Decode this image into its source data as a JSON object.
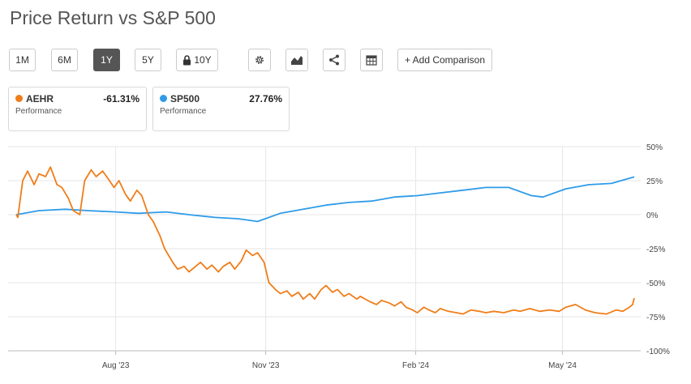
{
  "page": {
    "title": "Price Return vs S&P 500"
  },
  "toolbar": {
    "ranges": [
      "1M",
      "6M",
      "1Y",
      "5Y",
      "10Y"
    ],
    "active_range": "1Y",
    "icons": [
      "gear-icon",
      "chart-type-icon",
      "share-icon",
      "table-icon"
    ],
    "add_comparison_label": "+ Add Comparison"
  },
  "cards": [
    {
      "symbol": "AEHR",
      "value": "-61.31%",
      "sub": "Performance",
      "color": "#f07d1a"
    },
    {
      "symbol": "SP500",
      "value": "27.76%",
      "sub": "Performance",
      "color": "#2f9be8"
    }
  ],
  "chart_data": {
    "type": "line",
    "x_axis_labels": [
      "Aug '23",
      "Nov '23",
      "Feb '24",
      "May '24"
    ],
    "y_axis_labels": [
      "50%",
      "25%",
      "0%",
      "-25%",
      "-50%",
      "-75%",
      "-100%"
    ],
    "ylim": [
      -100,
      50
    ],
    "grid": true,
    "series": [
      {
        "name": "AEHR",
        "color": "#f07d1a",
        "x": [
          "2023-06-01",
          "2023-06-02",
          "2023-06-05",
          "2023-06-08",
          "2023-06-12",
          "2023-06-15",
          "2023-06-19",
          "2023-06-22",
          "2023-06-26",
          "2023-06-29",
          "2023-07-03",
          "2023-07-06",
          "2023-07-10",
          "2023-07-13",
          "2023-07-17",
          "2023-07-20",
          "2023-07-24",
          "2023-07-27",
          "2023-07-31",
          "2023-08-03",
          "2023-08-07",
          "2023-08-10",
          "2023-08-14",
          "2023-08-17",
          "2023-08-21",
          "2023-08-24",
          "2023-08-28",
          "2023-08-31",
          "2023-09-05",
          "2023-09-08",
          "2023-09-12",
          "2023-09-15",
          "2023-09-19",
          "2023-09-22",
          "2023-09-26",
          "2023-09-29",
          "2023-10-03",
          "2023-10-06",
          "2023-10-10",
          "2023-10-13",
          "2023-10-17",
          "2023-10-20",
          "2023-10-24",
          "2023-10-27",
          "2023-10-31",
          "2023-11-03",
          "2023-11-07",
          "2023-11-10",
          "2023-11-14",
          "2023-11-17",
          "2023-11-21",
          "2023-11-24",
          "2023-11-28",
          "2023-12-01",
          "2023-12-05",
          "2023-12-08",
          "2023-12-12",
          "2023-12-15",
          "2023-12-19",
          "2023-12-22",
          "2023-12-27",
          "2023-12-29",
          "2024-01-04",
          "2024-01-08",
          "2024-01-11",
          "2024-01-16",
          "2024-01-19",
          "2024-01-23",
          "2024-01-26",
          "2024-01-30",
          "2024-02-02",
          "2024-02-06",
          "2024-02-09",
          "2024-02-13",
          "2024-02-16",
          "2024-02-21",
          "2024-02-26",
          "2024-03-01",
          "2024-03-06",
          "2024-03-11",
          "2024-03-15",
          "2024-03-20",
          "2024-03-26",
          "2024-04-01",
          "2024-04-05",
          "2024-04-11",
          "2024-04-17",
          "2024-04-23",
          "2024-04-29",
          "2024-05-03",
          "2024-05-09",
          "2024-05-15",
          "2024-05-21",
          "2024-05-28",
          "2024-06-03",
          "2024-06-07",
          "2024-06-11",
          "2024-06-13",
          "2024-06-14"
        ],
        "values": [
          0,
          -2,
          25,
          32,
          22,
          30,
          28,
          35,
          22,
          20,
          12,
          3,
          0,
          25,
          33,
          28,
          32,
          27,
          20,
          25,
          15,
          10,
          18,
          14,
          0,
          -5,
          -15,
          -25,
          -35,
          -40,
          -38,
          -42,
          -38,
          -35,
          -40,
          -37,
          -42,
          -38,
          -35,
          -40,
          -34,
          -26,
          -30,
          -28,
          -35,
          -50,
          -55,
          -58,
          -56,
          -60,
          -57,
          -62,
          -58,
          -62,
          -55,
          -52,
          -57,
          -55,
          -60,
          -58,
          -62,
          -60,
          -64,
          -66,
          -63,
          -65,
          -67,
          -64,
          -68,
          -70,
          -72,
          -68,
          -70,
          -72,
          -69,
          -71,
          -72,
          -73,
          -70,
          -71,
          -72,
          -71,
          -72,
          -70,
          -71,
          -69,
          -71,
          -70,
          -71,
          -68,
          -66,
          -70,
          -72,
          -73,
          -70,
          -71,
          -68,
          -66,
          -61.31
        ]
      },
      {
        "name": "SP500",
        "color": "#2f9be8",
        "x": [
          "2023-06-01",
          "2023-06-15",
          "2023-07-01",
          "2023-07-15",
          "2023-08-01",
          "2023-08-15",
          "2023-09-01",
          "2023-09-15",
          "2023-10-01",
          "2023-10-15",
          "2023-10-27",
          "2023-11-10",
          "2023-11-24",
          "2023-12-08",
          "2023-12-22",
          "2024-01-05",
          "2024-01-19",
          "2024-02-02",
          "2024-02-16",
          "2024-03-01",
          "2024-03-15",
          "2024-03-29",
          "2024-04-12",
          "2024-04-19",
          "2024-05-03",
          "2024-05-17",
          "2024-05-31",
          "2024-06-14"
        ],
        "values": [
          0,
          3,
          4,
          3,
          2,
          1,
          2,
          0,
          -2,
          -3,
          -5,
          1,
          4,
          7,
          9,
          10,
          13,
          14,
          16,
          18,
          20,
          20,
          14,
          13,
          19,
          22,
          23,
          27.76
        ]
      }
    ]
  }
}
